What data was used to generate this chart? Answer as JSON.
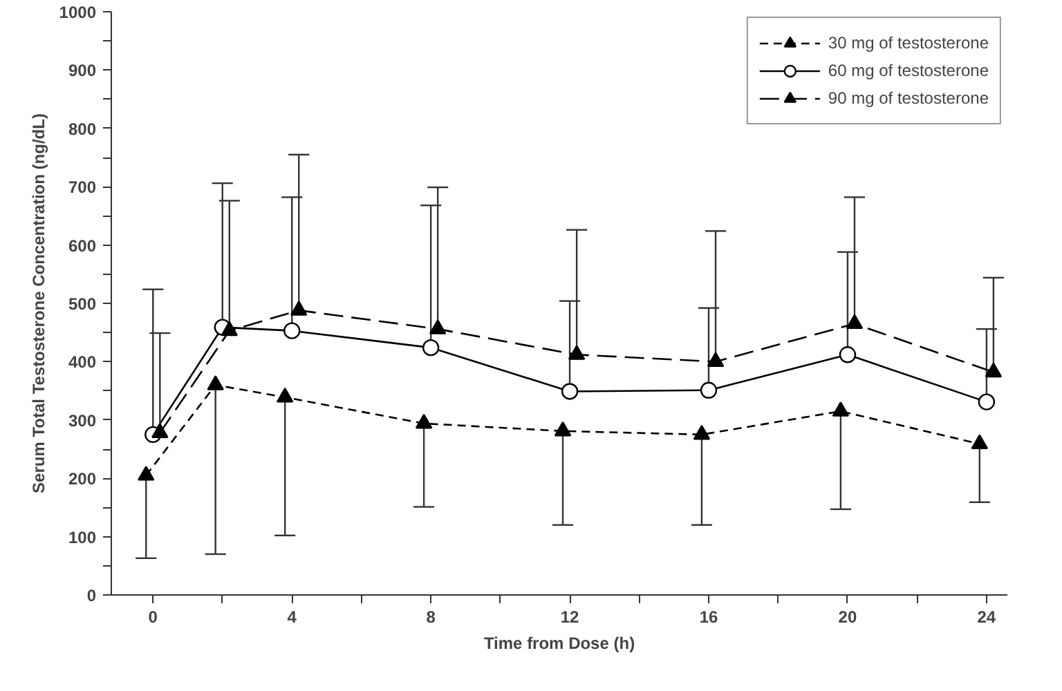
{
  "chart_data": {
    "type": "line",
    "xlabel": "Time from Dose (h)",
    "ylabel": "Serum Total Testosterone Concentration (ng/dL)",
    "xlim": [
      -1.2,
      24.6
    ],
    "ylim": [
      0,
      1000
    ],
    "xticks": [
      0,
      {
        "value": 2,
        "label": null
      },
      4,
      {
        "value": 6,
        "label": null
      },
      8,
      {
        "value": 10,
        "label": null
      },
      12,
      {
        "value": 14,
        "label": null
      },
      16,
      {
        "value": 18,
        "label": null
      },
      20,
      {
        "value": 22,
        "label": null
      },
      24
    ],
    "yticks": [
      0,
      {
        "value": 50,
        "label": null
      },
      100,
      {
        "value": 150,
        "label": null
      },
      200,
      {
        "value": 250,
        "label": null
      },
      300,
      {
        "value": 350,
        "label": null
      },
      400,
      {
        "value": 450,
        "label": null
      },
      500,
      {
        "value": 550,
        "label": null
      },
      600,
      {
        "value": 650,
        "label": null
      },
      700,
      {
        "value": 750,
        "label": null
      },
      800,
      {
        "value": 850,
        "label": null
      },
      900,
      {
        "value": 950,
        "label": null
      },
      1000
    ],
    "grid": false,
    "legend": "top right",
    "series": [
      {
        "name": "30 mg of testosterone",
        "color": "#000000",
        "marker": "triangle",
        "line_style": "dashed",
        "x": [
          -0.2,
          1.8,
          3.8,
          7.8,
          11.8,
          15.8,
          19.8,
          23.8
        ],
        "values": [
          205,
          360,
          339,
          294,
          281,
          275,
          315,
          259
        ],
        "errors": [
          [
            63,
            205
          ],
          [
            70,
            360
          ],
          [
            102,
            339
          ],
          [
            151,
            294
          ],
          [
            120,
            281
          ],
          [
            120,
            275
          ],
          [
            147,
            315
          ],
          [
            159,
            259
          ]
        ]
      },
      {
        "name": "60 mg of testosterone",
        "color": "#000000",
        "marker": "circle",
        "line_style": "solid",
        "x": [
          0,
          2,
          4,
          8,
          12,
          16,
          20,
          24
        ],
        "values": [
          275,
          459,
          453,
          424,
          349,
          351,
          412,
          331
        ],
        "errors": [
          [
            275,
            524
          ],
          [
            459,
            706
          ],
          [
            453,
            682
          ],
          [
            424,
            668
          ],
          [
            349,
            504
          ],
          [
            351,
            492
          ],
          [
            412,
            588
          ],
          [
            331,
            456
          ]
        ]
      },
      {
        "name": "90 mg of testosterone",
        "color": "#000000",
        "marker": "triangle",
        "line_style": "longdash",
        "x": [
          0.2,
          2.2,
          4.2,
          8.2,
          12.2,
          16.2,
          20.2,
          24.2
        ],
        "values": [
          278,
          453,
          488,
          456,
          412,
          400,
          465,
          382
        ],
        "errors": [
          [
            278,
            449
          ],
          [
            453,
            676
          ],
          [
            488,
            755
          ],
          [
            456,
            699
          ],
          [
            412,
            626
          ],
          [
            400,
            624
          ],
          [
            465,
            682
          ],
          [
            382,
            544
          ]
        ]
      }
    ]
  }
}
